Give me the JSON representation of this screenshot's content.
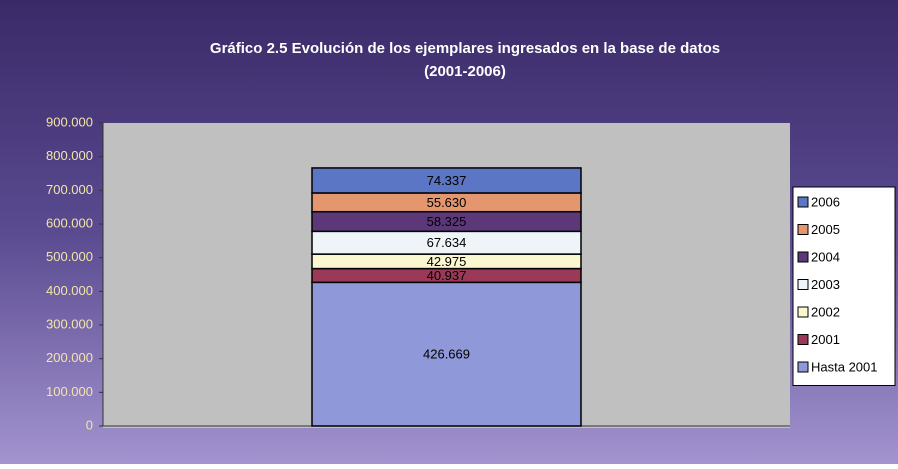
{
  "chart_data": {
    "type": "bar",
    "stacked": true,
    "title": "Gráfico 2.5 Evolución de los ejemplares ingresados en la base de datos",
    "subtitle": "(2001-2006)",
    "categories": [
      null
    ],
    "series": [
      {
        "name": "Hasta 2001",
        "color": "#8f98d8",
        "values": [
          426669
        ],
        "value_labels": [
          "426.669"
        ]
      },
      {
        "name": "2001",
        "color": "#9a3a58",
        "values": [
          40937
        ],
        "value_labels": [
          "40.937"
        ]
      },
      {
        "name": "2002",
        "color": "#fbf7d0",
        "values": [
          42975
        ],
        "value_labels": [
          "42.975"
        ]
      },
      {
        "name": "2003",
        "color": "#eef4f8",
        "values": [
          67634
        ],
        "value_labels": [
          "67.634"
        ]
      },
      {
        "name": "2004",
        "color": "#5c3878",
        "values": [
          58325
        ],
        "value_labels": [
          "58.325"
        ]
      },
      {
        "name": "2005",
        "color": "#e4966e",
        "values": [
          55630
        ],
        "value_labels": [
          "55.630"
        ]
      },
      {
        "name": "2006",
        "color": "#5a76c4",
        "values": [
          74337
        ],
        "value_labels": [
          "74.337"
        ]
      }
    ],
    "ylim": [
      0,
      900000
    ],
    "yticks": [
      0,
      {
        "value": 100000,
        "label": "100.000"
      },
      {
        "value": 200000,
        "label": "200.000"
      },
      {
        "value": 300000,
        "label": "300.000"
      },
      {
        "value": 400000,
        "label": "400.000"
      },
      {
        "value": 500000,
        "label": "500.000"
      },
      {
        "value": 600000,
        "label": "600.000"
      },
      {
        "value": 700000,
        "label": "700.000"
      },
      {
        "value": 800000,
        "label": "800.000"
      },
      {
        "value": 900000,
        "label": "900.000"
      }
    ],
    "legend": "right",
    "grid": false
  }
}
